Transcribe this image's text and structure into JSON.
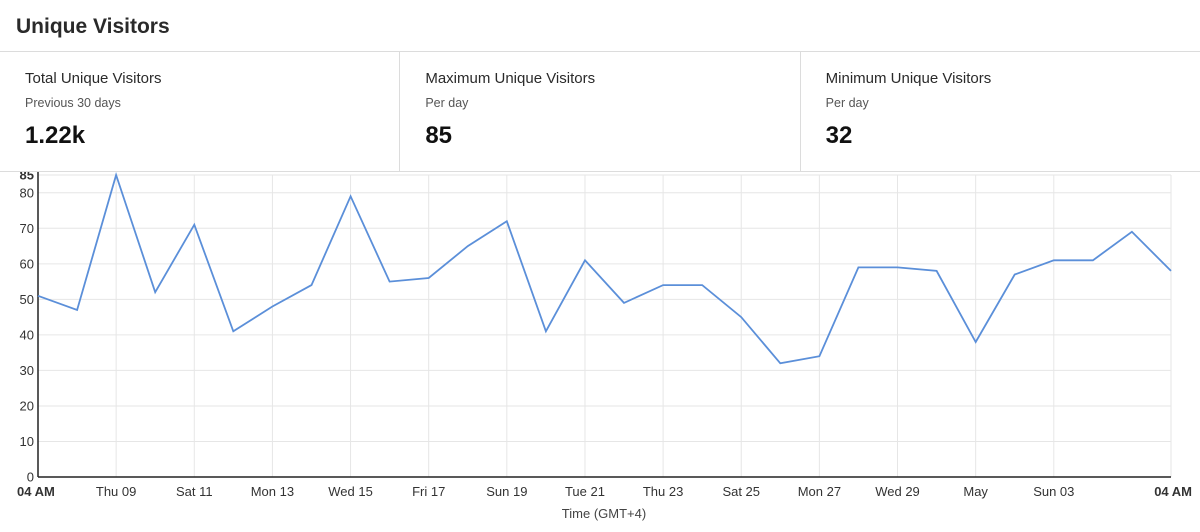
{
  "header": {
    "title": "Unique Visitors"
  },
  "stats": [
    {
      "label": "Total Unique Visitors",
      "sublabel": "Previous 30 days",
      "value": "1.22k"
    },
    {
      "label": "Maximum Unique Visitors",
      "sublabel": "Per day",
      "value": "85"
    },
    {
      "label": "Minimum Unique Visitors",
      "sublabel": "Per day",
      "value": "32"
    }
  ],
  "colors": {
    "line": "#5b8fd9",
    "grid": "#e6e6e6",
    "axis": "#222222"
  },
  "chart_data": {
    "type": "line",
    "xlabel": "Time (GMT+4)",
    "ylabel": "",
    "ylim": [
      0,
      85
    ],
    "yticks": [
      0,
      10,
      20,
      30,
      40,
      50,
      60,
      70,
      80,
      85
    ],
    "grid": true,
    "x_tick_labels": [
      {
        "label": "04 AM",
        "index": 0,
        "bold": true
      },
      {
        "label": "Thu 09",
        "index": 2
      },
      {
        "label": "Sat 11",
        "index": 4
      },
      {
        "label": "Mon 13",
        "index": 6
      },
      {
        "label": "Wed 15",
        "index": 8
      },
      {
        "label": "Fri 17",
        "index": 10
      },
      {
        "label": "Sun 19",
        "index": 12
      },
      {
        "label": "Tue 21",
        "index": 14
      },
      {
        "label": "Thu 23",
        "index": 16
      },
      {
        "label": "Sat 25",
        "index": 18
      },
      {
        "label": "Mon 27",
        "index": 20
      },
      {
        "label": "Wed 29",
        "index": 22
      },
      {
        "label": "May",
        "index": 24
      },
      {
        "label": "Sun 03",
        "index": 26
      },
      {
        "label": "04 AM",
        "index": 29,
        "bold": true
      }
    ],
    "series": [
      {
        "values": [
          51,
          47,
          85,
          52,
          71,
          41,
          48,
          54,
          79,
          55,
          56,
          65,
          72,
          41,
          61,
          49,
          54,
          54,
          45,
          32,
          34,
          59,
          59,
          58,
          38,
          57,
          61,
          61,
          69,
          58
        ]
      }
    ]
  }
}
